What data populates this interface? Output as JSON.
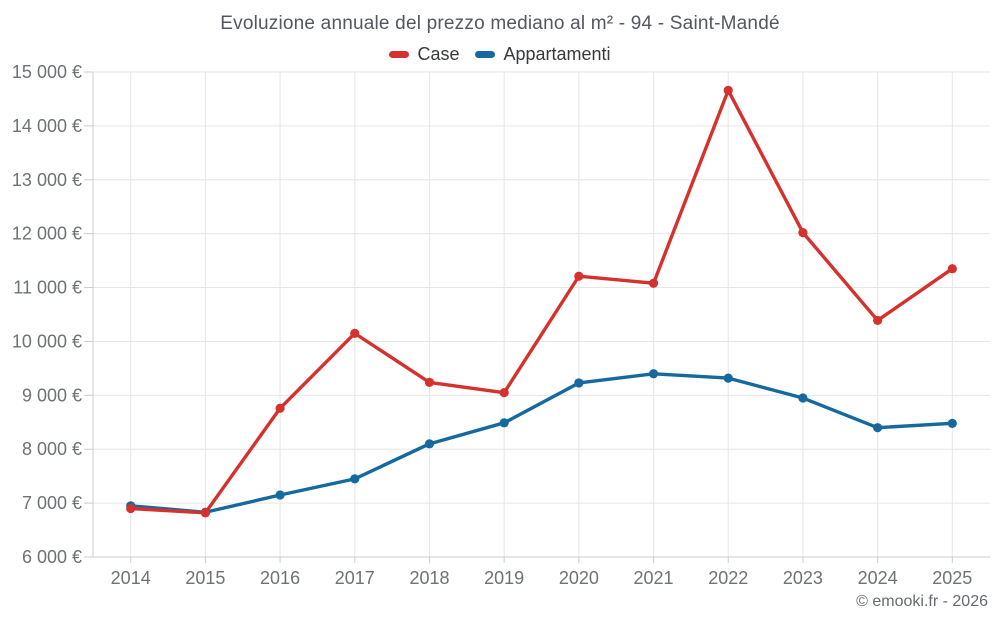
{
  "chart": {
    "title": "Evoluzione annuale del prezzo mediano al m² - 94 - Saint-Mandé",
    "credit": "© emooki.fr - 2026"
  },
  "chart_data": {
    "type": "line",
    "title": "Evoluzione annuale del prezzo mediano al m² - 94 - Saint-Mandé",
    "x": [
      "2014",
      "2015",
      "2016",
      "2017",
      "2018",
      "2019",
      "2020",
      "2021",
      "2022",
      "2023",
      "2024",
      "2025"
    ],
    "series": [
      {
        "name": "Case",
        "color": "#d5312d",
        "values": [
          6900,
          6820,
          8760,
          10150,
          9240,
          9050,
          11210,
          11080,
          14660,
          12020,
          10390,
          11350
        ]
      },
      {
        "name": "Appartamenti",
        "color": "#16699e",
        "values": [
          6950,
          6830,
          7150,
          7450,
          8100,
          8490,
          9230,
          9400,
          9320,
          8950,
          8400,
          8480
        ]
      }
    ],
    "ylim": [
      6000,
      15000
    ],
    "ytick_step": 1000,
    "ytick_suffix": " €",
    "xlabel": "",
    "ylabel": "",
    "grid": true,
    "legend_position": "top",
    "credit": "© emooki.fr - 2026",
    "colors": {
      "gridline": "#e6e6e6",
      "axis": "#cccccc",
      "tick_label": "#6f7275",
      "title": "#54585e",
      "legend_text": "#37393c",
      "credit_text": "#666a6e"
    }
  }
}
